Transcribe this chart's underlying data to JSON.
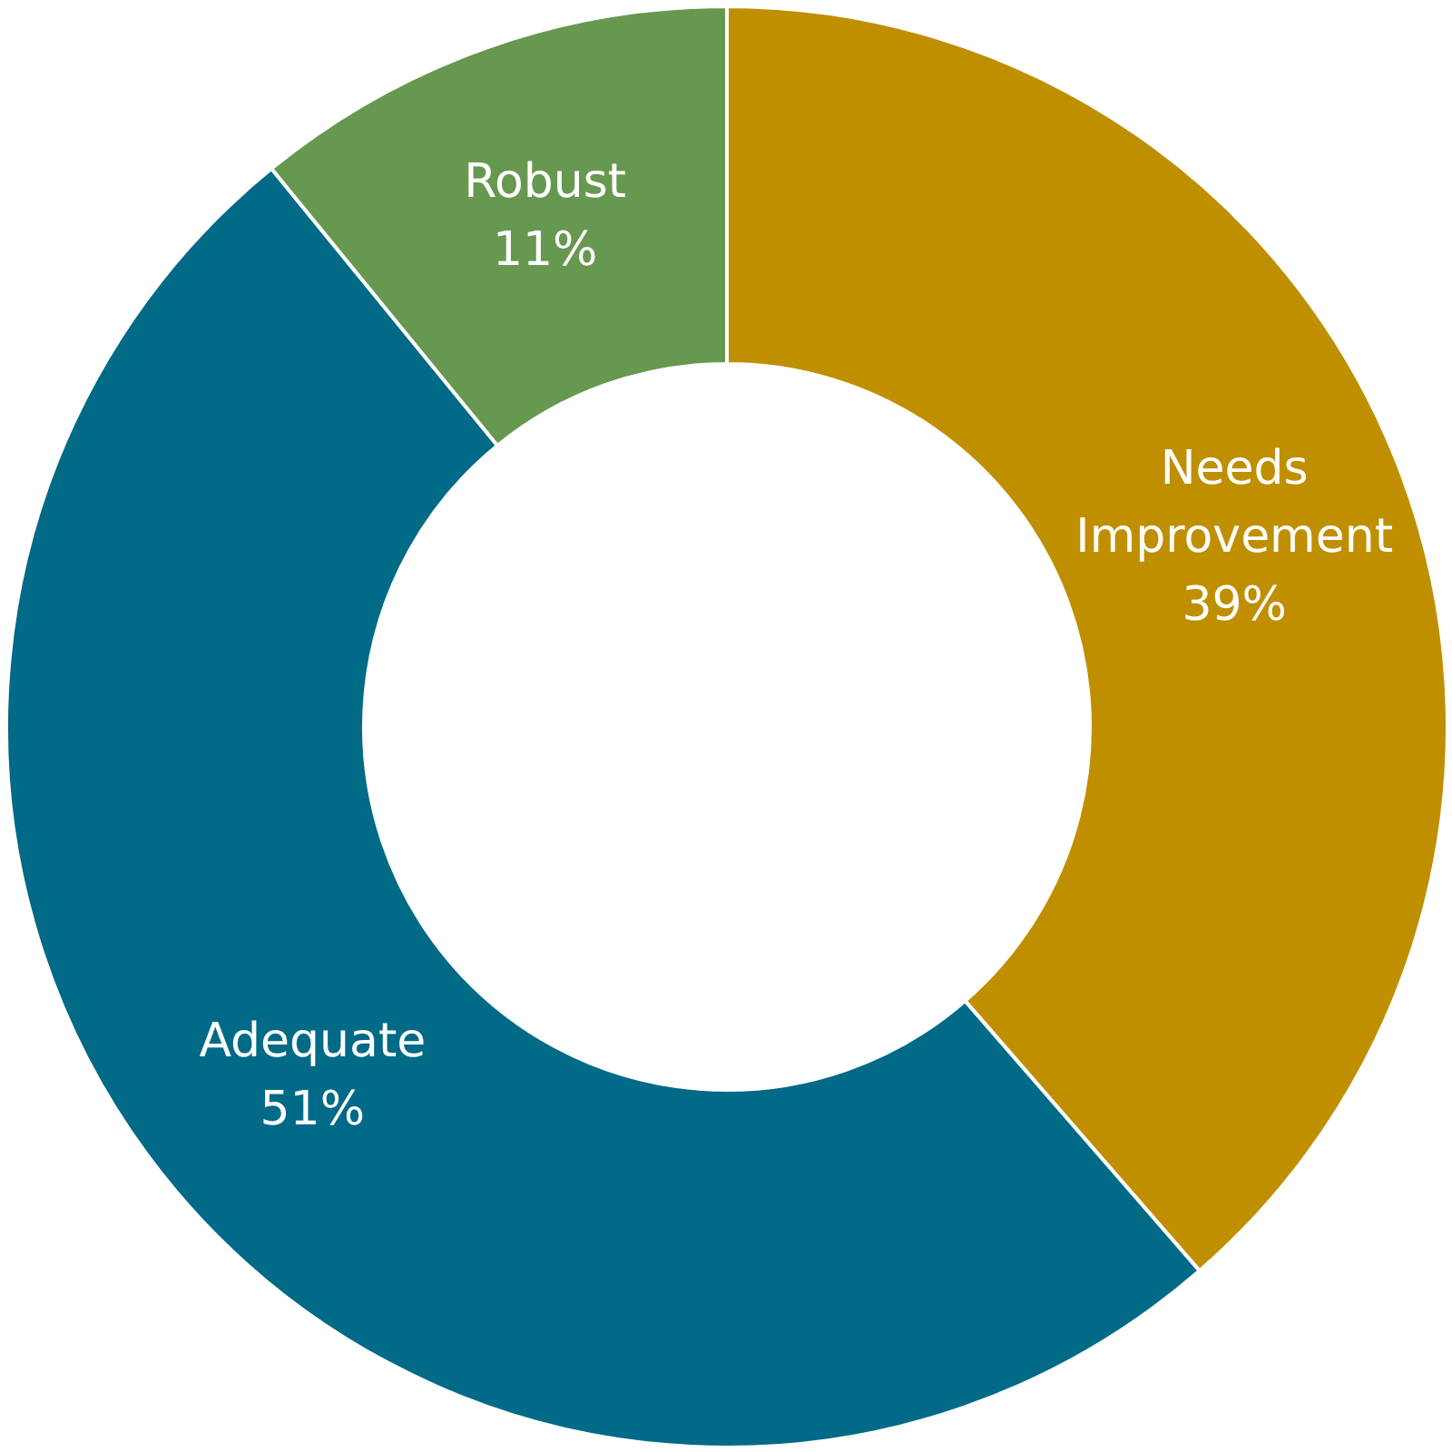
{
  "chart_data": {
    "type": "donut",
    "categories": [
      "Needs Improvement",
      "Adequate",
      "Robust"
    ],
    "values": [
      39,
      51,
      11
    ],
    "colors": [
      "#c08f00",
      "#006a87",
      "#67984f"
    ],
    "value_labels": [
      "39%",
      "51%",
      "11%"
    ]
  }
}
